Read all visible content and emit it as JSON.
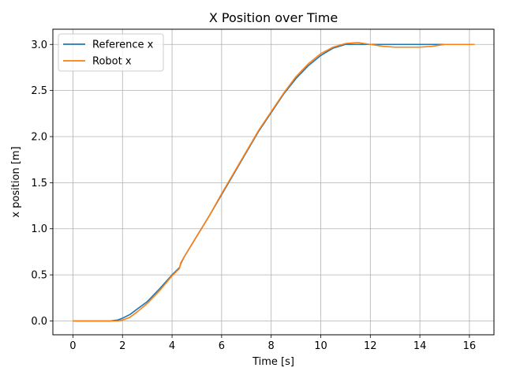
{
  "chart_data": {
    "type": "line",
    "title": "X Position over Time",
    "xlabel": "Time [s]",
    "ylabel": "x position [m]",
    "xlim": [
      -0.81,
      16.99
    ],
    "ylim": [
      -0.15,
      3.165
    ],
    "xticks": [
      0,
      2,
      4,
      6,
      8,
      10,
      12,
      14,
      16
    ],
    "xtick_labels": [
      "0",
      "2",
      "4",
      "6",
      "8",
      "10",
      "12",
      "14",
      "16"
    ],
    "yticks": [
      0.0,
      0.5,
      1.0,
      1.5,
      2.0,
      2.5,
      3.0
    ],
    "ytick_labels": [
      "0.0",
      "0.5",
      "1.0",
      "1.5",
      "2.0",
      "2.5",
      "3.0"
    ],
    "grid": true,
    "legend_position": "top-left",
    "series": [
      {
        "name": "Reference x",
        "color": "#1f77b4",
        "x": [
          0,
          0.5,
          1.0,
          1.5,
          1.8,
          2.0,
          2.3,
          2.6,
          3.0,
          3.5,
          4.0,
          4.3,
          4.35,
          4.5,
          5.0,
          5.5,
          6.0,
          6.5,
          7.0,
          7.5,
          8.0,
          8.5,
          9.0,
          9.5,
          10.0,
          10.5,
          11.0,
          11.5,
          12.0,
          13.0,
          14.0,
          15.0,
          15.5,
          16.2
        ],
        "y": [
          0.0,
          0.0,
          0.0,
          0.0,
          0.01,
          0.03,
          0.07,
          0.13,
          0.21,
          0.35,
          0.5,
          0.58,
          0.62,
          0.7,
          0.92,
          1.14,
          1.37,
          1.6,
          1.83,
          2.06,
          2.26,
          2.46,
          2.63,
          2.77,
          2.88,
          2.96,
          3.0,
          3.0,
          3.0,
          3.0,
          3.0,
          3.0,
          3.0,
          3.0
        ]
      },
      {
        "name": "Robot x",
        "color": "#ff7f0e",
        "x": [
          0,
          0.5,
          1.0,
          1.5,
          1.8,
          2.0,
          2.3,
          2.6,
          3.0,
          3.5,
          4.0,
          4.3,
          4.35,
          4.5,
          5.0,
          5.5,
          6.0,
          6.5,
          7.0,
          7.5,
          8.0,
          8.5,
          9.0,
          9.5,
          10.0,
          10.5,
          11.0,
          11.5,
          12.0,
          12.5,
          13.0,
          13.5,
          14.0,
          14.5,
          15.0,
          15.5,
          16.2
        ],
        "y": [
          0.0,
          0.0,
          0.0,
          0.0,
          0.0,
          0.01,
          0.04,
          0.1,
          0.19,
          0.33,
          0.49,
          0.57,
          0.63,
          0.7,
          0.92,
          1.14,
          1.38,
          1.61,
          1.84,
          2.07,
          2.27,
          2.47,
          2.65,
          2.79,
          2.9,
          2.97,
          3.01,
          3.02,
          3.0,
          2.98,
          2.97,
          2.97,
          2.97,
          2.98,
          3.0,
          3.0,
          3.0
        ]
      }
    ]
  }
}
